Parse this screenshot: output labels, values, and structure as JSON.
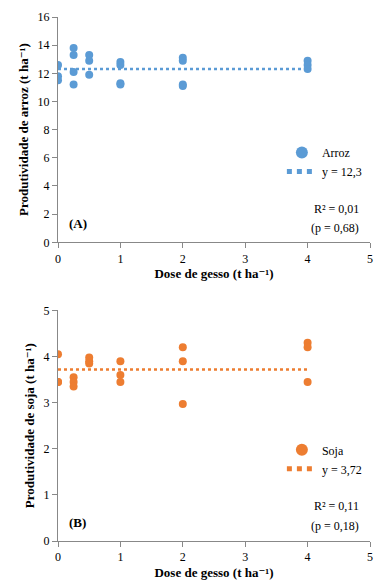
{
  "chart_data": [
    {
      "type": "scatter",
      "x_label": "Dose de gesso (t ha⁻¹)",
      "y_label": "Produtividade de arroz (t ha⁻¹)",
      "xlim": [
        0,
        5
      ],
      "xticks": [
        0,
        1,
        2,
        3,
        4,
        5
      ],
      "ylim": [
        0,
        16
      ],
      "yticks": [
        0,
        2,
        4,
        6,
        8,
        10,
        12,
        14,
        16
      ],
      "grid": false,
      "legend": "lower right",
      "annotations": [
        "(A)",
        "R² = 0,01",
        "(p = 0,68)"
      ],
      "series": [
        {
          "name": "Arroz",
          "type": "scatter",
          "marker": "circle",
          "color": "#5b9bd5",
          "x": [
            0,
            0,
            0,
            0.25,
            0.25,
            0.25,
            0.25,
            0.5,
            0.5,
            0.5,
            1,
            1,
            1,
            1,
            2,
            2,
            2,
            2,
            4,
            4,
            4
          ],
          "values": [
            12.6,
            11.8,
            11.5,
            13.8,
            13.3,
            12.1,
            11.2,
            13.3,
            12.9,
            11.9,
            12.8,
            12.6,
            11.3,
            11.2,
            13.1,
            12.9,
            11.2,
            11.1,
            12.9,
            12.6,
            12.3
          ]
        },
        {
          "name": "y = 12,3",
          "type": "line",
          "line_style": "dotted",
          "color": "#5b9bd5",
          "x": [
            0,
            4
          ],
          "values": [
            12.3,
            12.3
          ]
        }
      ]
    },
    {
      "type": "scatter",
      "x_label": "Dose de gesso (t ha⁻¹)",
      "y_label": "Produtividade de soja (t ha⁻¹)",
      "xlim": [
        0,
        5
      ],
      "xticks": [
        0,
        1,
        2,
        3,
        4,
        5
      ],
      "ylim": [
        0,
        5
      ],
      "yticks": [
        0,
        1,
        2,
        3,
        4,
        5
      ],
      "grid": false,
      "legend": "lower right",
      "annotations": [
        "(B)",
        "R² = 0,11",
        "(p = 0,18)"
      ],
      "series": [
        {
          "name": "Soja",
          "type": "scatter",
          "marker": "circle",
          "color": "#ed7d31",
          "x": [
            0,
            0,
            0,
            0.25,
            0.25,
            0.25,
            0.5,
            0.5,
            0.5,
            1,
            1,
            1,
            2,
            2,
            2,
            4,
            4,
            4
          ],
          "values": [
            4.05,
            3.45,
            3.45,
            3.55,
            3.45,
            3.35,
            3.98,
            3.9,
            3.85,
            3.9,
            3.6,
            3.45,
            4.2,
            3.9,
            2.97,
            4.3,
            4.2,
            3.45
          ]
        },
        {
          "name": "y = 3,72",
          "type": "line",
          "line_style": "dotted",
          "color": "#ed7d31",
          "x": [
            0,
            4
          ],
          "values": [
            3.72,
            3.72
          ]
        }
      ]
    }
  ]
}
